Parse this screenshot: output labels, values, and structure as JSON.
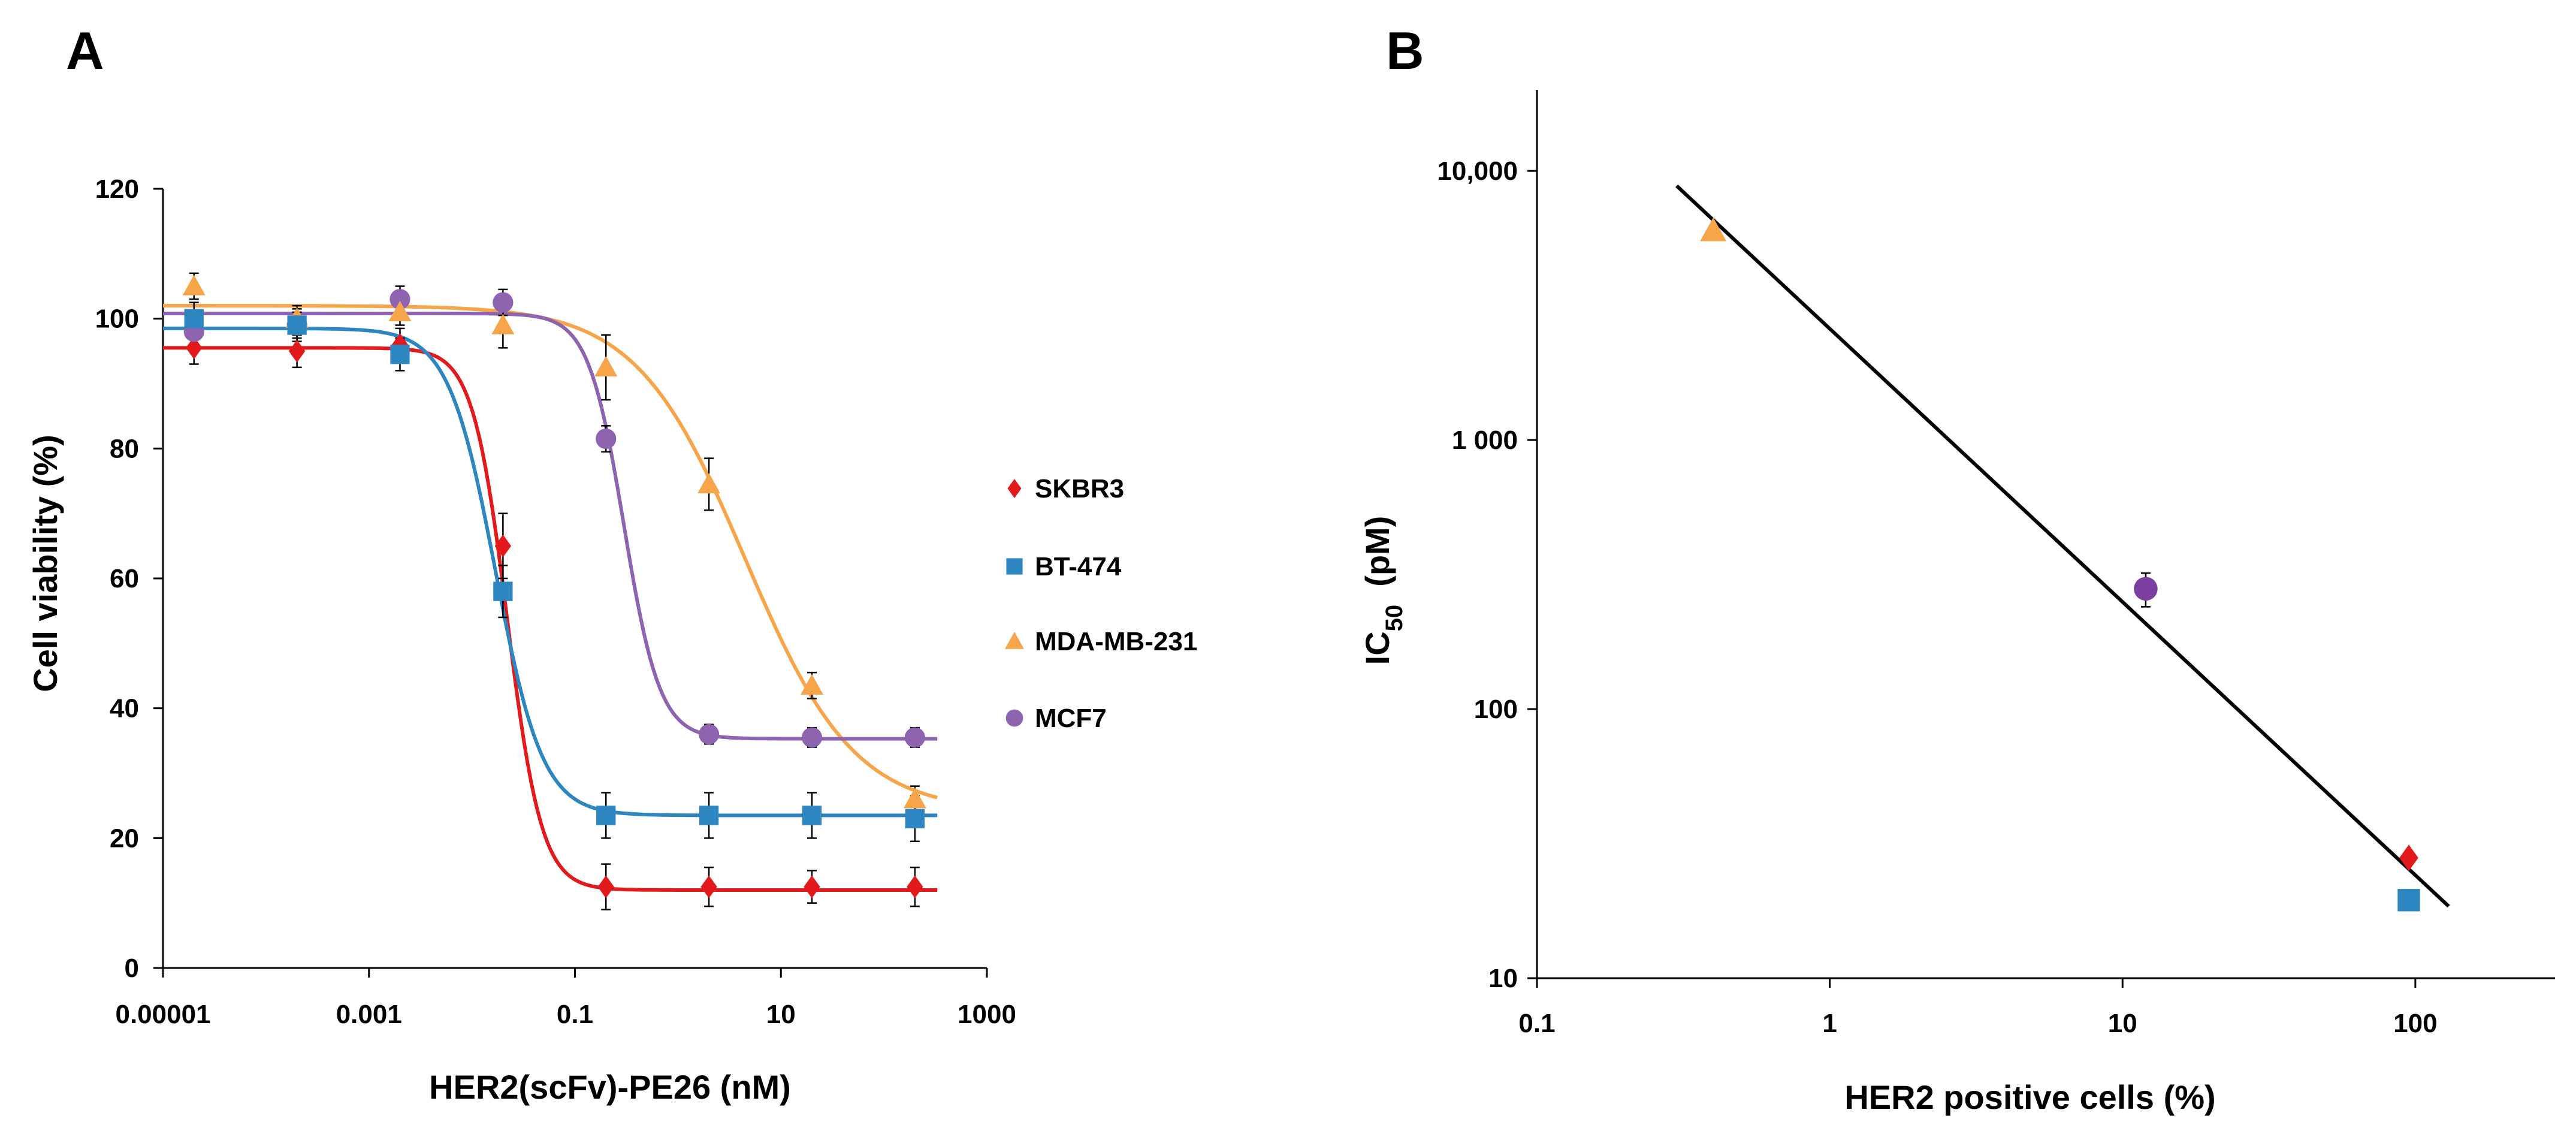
{
  "chart_data": [
    {
      "panel_label": "A",
      "type": "line",
      "subtype": "dose-response scatter with fitted curves and error bars",
      "xlabel": "HER2(scFv)-PE26 (nM)",
      "ylabel": "Cell viability (%)",
      "x_scale": "log",
      "xlim": [
        1e-05,
        1000
      ],
      "ylim": [
        0,
        120
      ],
      "x_ticks": [
        {
          "value": 1e-05,
          "label": "0.00001"
        },
        {
          "value": 0.001,
          "label": "0.001"
        },
        {
          "value": 0.1,
          "label": "0.1"
        },
        {
          "value": 10,
          "label": "10"
        },
        {
          "value": 1000,
          "label": "1000"
        }
      ],
      "y_ticks": [
        {
          "value": 0,
          "label": "0"
        },
        {
          "value": 20,
          "label": "20"
        },
        {
          "value": 40,
          "label": "40"
        },
        {
          "value": 60,
          "label": "60"
        },
        {
          "value": 80,
          "label": "80"
        },
        {
          "value": 100,
          "label": "100"
        },
        {
          "value": 120,
          "label": "120"
        }
      ],
      "grid": false,
      "legend_position": "right",
      "series": [
        {
          "name": "SKBR3",
          "marker": "diamond",
          "color": "#e31a1c",
          "x": [
            2e-05,
            0.0002,
            0.002,
            0.02,
            0.2,
            2,
            20,
            200
          ],
          "y": [
            95.5,
            95,
            96,
            65,
            12.5,
            12.5,
            12.5,
            12.5
          ],
          "error": [
            2.5,
            2.5,
            2.5,
            5,
            3.5,
            3,
            2.5,
            3
          ],
          "fit": {
            "top": 95.5,
            "bottom": 12,
            "ec50": 0.022,
            "hill": 2.6
          }
        },
        {
          "name": "BT-474",
          "marker": "square",
          "color": "#2e86c1",
          "x": [
            2e-05,
            0.0002,
            0.002,
            0.02,
            0.2,
            2,
            20,
            200
          ],
          "y": [
            100,
            99,
            94.5,
            58,
            23.5,
            23.5,
            23.5,
            23
          ],
          "error": [
            2.5,
            2.5,
            2.5,
            4,
            3.5,
            3.5,
            3.5,
            3.5
          ],
          "fit": {
            "top": 98.5,
            "bottom": 23.5,
            "ec50": 0.017,
            "hill": 1.9
          }
        },
        {
          "name": "MDA-MB-231",
          "marker": "triangle",
          "color": "#f7a54a",
          "x": [
            2e-05,
            0.0002,
            0.002,
            0.02,
            0.2,
            2,
            20,
            200
          ],
          "y": [
            105,
            100,
            101,
            99,
            92.5,
            74.5,
            43.5,
            26
          ],
          "error": [
            2,
            2,
            2,
            3.5,
            5,
            4,
            2,
            2
          ],
          "fit": {
            "top": 102,
            "bottom": 24,
            "ec50": 4.5,
            "hill": 0.82
          }
        },
        {
          "name": "MCF7",
          "marker": "circle",
          "color": "#8e63b0",
          "x": [
            2e-05,
            0.0002,
            0.002,
            0.02,
            0.2,
            2,
            20,
            200
          ],
          "y": [
            98,
            99,
            103,
            102.5,
            81.5,
            36,
            35.5,
            35.5
          ],
          "error": [
            2,
            2,
            2,
            2,
            2,
            1.5,
            1.5,
            1.5
          ],
          "fit": {
            "top": 100.8,
            "bottom": 35.3,
            "ec50": 0.3,
            "hill": 2.5
          }
        }
      ]
    },
    {
      "panel_label": "B",
      "type": "scatter",
      "subtype": "log-log scatter with trend line",
      "xlabel": "HER2 positive cells (%)",
      "ylabel": "IC50 (pM)",
      "ylabel_main": "IC",
      "ylabel_sub": "50",
      "ylabel_unit": "(pM)",
      "x_scale": "log",
      "y_scale": "log",
      "xlim": [
        0.1,
        300
      ],
      "ylim": [
        10,
        20000
      ],
      "x_ticks": [
        {
          "value": 0.1,
          "label": "0.1"
        },
        {
          "value": 1,
          "label": "1"
        },
        {
          "value": 10,
          "label": "10"
        },
        {
          "value": 100,
          "label": "100"
        }
      ],
      "y_ticks": [
        {
          "value": 10,
          "label": "10"
        },
        {
          "value": 100,
          "label": "100"
        },
        {
          "value": 1000,
          "label": "1 000"
        },
        {
          "value": 10000,
          "label": "10,000"
        }
      ],
      "grid": false,
      "points": [
        {
          "cell_line": "MDA-MB-231",
          "marker": "triangle",
          "color": "#f7a54a",
          "x": 0.4,
          "y": 6000,
          "error": 0
        },
        {
          "cell_line": "MCF7",
          "marker": "circle",
          "color": "#7b3fa0",
          "x": 12,
          "y": 280,
          "error": 40
        },
        {
          "cell_line": "SKBR3",
          "marker": "diamond",
          "color": "#e31a1c",
          "x": 95,
          "y": 28,
          "error": 0
        },
        {
          "cell_line": "BT-474",
          "marker": "square",
          "color": "#2e86c1",
          "x": 95,
          "y": 19.5,
          "error": 0
        }
      ],
      "trendline": {
        "x": [
          0.3,
          130
        ],
        "y": [
          8800,
          18.5
        ],
        "color": "#000000"
      }
    }
  ]
}
